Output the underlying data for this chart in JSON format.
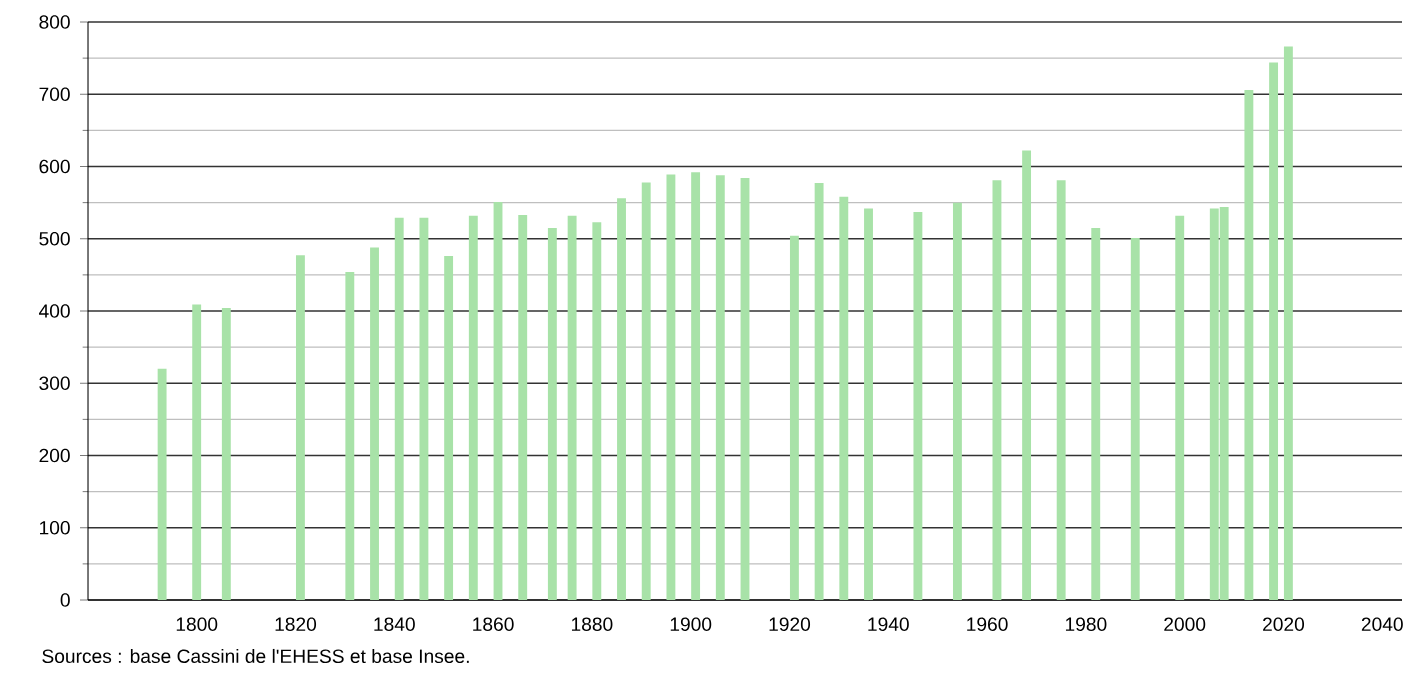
{
  "chart_data": {
    "type": "bar",
    "x": [
      1793,
      1800,
      1806,
      1821,
      1831,
      1836,
      1841,
      1846,
      1851,
      1856,
      1861,
      1866,
      1872,
      1876,
      1881,
      1886,
      1891,
      1896,
      1901,
      1906,
      1911,
      1921,
      1926,
      1931,
      1936,
      1946,
      1954,
      1962,
      1968,
      1975,
      1982,
      1990,
      1999,
      2006,
      2008,
      2013,
      2018,
      2021
    ],
    "values": [
      320,
      409,
      404,
      477,
      454,
      488,
      529,
      529,
      476,
      532,
      551,
      533,
      515,
      532,
      523,
      556,
      578,
      589,
      592,
      588,
      584,
      504,
      577,
      558,
      542,
      537,
      550,
      581,
      622,
      581,
      515,
      501,
      532,
      542,
      544,
      706,
      744,
      766
    ],
    "color": "#a8e2a8",
    "xlim": [
      1778,
      2044
    ],
    "xticks": [
      1800,
      1820,
      1840,
      1860,
      1880,
      1900,
      1920,
      1940,
      1960,
      1980,
      2000,
      2020,
      2040
    ],
    "ylim": [
      0,
      800
    ],
    "yticks": [
      0,
      100,
      200,
      300,
      400,
      500,
      600,
      700,
      800
    ],
    "grid": "y",
    "annotations": [
      "Sources : base Cassini de l'EHESS et base Insee."
    ]
  }
}
